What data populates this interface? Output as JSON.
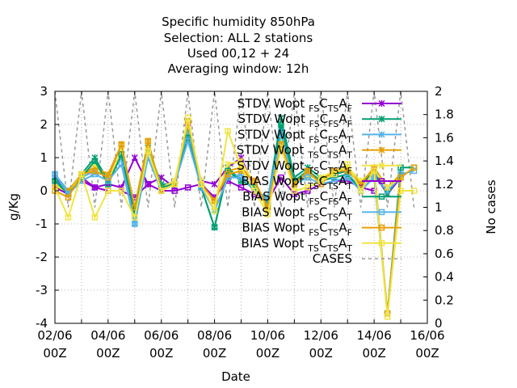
{
  "chart_data": {
    "type": "line",
    "title_lines": [
      "Specific humidity 850hPa",
      "Selection: ALL      2 stations",
      "Used  00,12  + 24",
      "Averaging window: 12h"
    ],
    "xlabel": "Date",
    "ylabel": "g/Kg",
    "y2label": "No cases",
    "ylim": [
      -4,
      3
    ],
    "y2lim": [
      0,
      2
    ],
    "xlim": [
      0,
      14
    ],
    "x_tick_labels": [
      {
        "x": 0,
        "date": "02/06",
        "time": "00Z"
      },
      {
        "x": 2,
        "date": "04/06",
        "time": "00Z"
      },
      {
        "x": 4,
        "date": "06/06",
        "time": "00Z"
      },
      {
        "x": 6,
        "date": "08/06",
        "time": "00Z"
      },
      {
        "x": 8,
        "date": "10/06",
        "time": "00Z"
      },
      {
        "x": 10,
        "date": "12/06",
        "time": "00Z"
      },
      {
        "x": 12,
        "date": "14/06",
        "time": "00Z"
      },
      {
        "x": 14,
        "date": "16/06",
        "time": "00Z"
      }
    ],
    "y_ticks": [
      -4,
      -3,
      -2,
      -1,
      0,
      1,
      2,
      3
    ],
    "y2_ticks": [
      "0",
      "0.2",
      "0.4",
      "0.6",
      "0.8",
      "1",
      "1.2",
      "1.4",
      "1.6",
      "1.8",
      "2"
    ],
    "grid": true,
    "legend_position": "top-right",
    "x": [
      0,
      0.5,
      1,
      1.5,
      2,
      2.5,
      3,
      3.5,
      4,
      4.5,
      5,
      5.5,
      6,
      6.5,
      7,
      7.5,
      8,
      8.5,
      9,
      9.5,
      10,
      10.5,
      11,
      11.5,
      12,
      12.5,
      13,
      13.5
    ],
    "series": [
      {
        "legend_main": "STDV Wopt",
        "legend_sub": [
          "FS",
          "TS",
          "F"
        ],
        "marker": "x",
        "color": "#9400d3",
        "values": [
          0.4,
          0.0,
          0.4,
          0.1,
          0.2,
          0.1,
          1.0,
          0.2,
          0.4,
          0.1,
          1.9,
          0.3,
          0.2,
          0.7,
          1.0,
          0.1,
          -0.3,
          1.5,
          0.2,
          0.6,
          0.3,
          0.5,
          0.6,
          0.2,
          0.5,
          -0.1,
          0.4,
          null
        ]
      },
      {
        "legend_main": "STDV Wopt",
        "legend_sub": [
          "FS",
          "FS",
          "F"
        ],
        "marker": "x",
        "color": "#009e73",
        "values": [
          0.3,
          0.0,
          0.5,
          1.0,
          0.3,
          1.1,
          -0.9,
          1.3,
          0.2,
          0.2,
          1.8,
          0.1,
          -1.1,
          0.7,
          0.3,
          0.1,
          -0.3,
          2.2,
          0.4,
          0.7,
          0.4,
          0.5,
          0.6,
          0.2,
          0.6,
          -0.1,
          0.5,
          null
        ]
      },
      {
        "legend_main": "STDV Wopt",
        "legend_sub": [
          "FS",
          "FS",
          "T"
        ],
        "marker": "x",
        "color": "#56b4e9",
        "values": [
          0.5,
          0.0,
          0.4,
          0.6,
          0.4,
          1.0,
          -1.0,
          1.2,
          0.1,
          0.3,
          1.7,
          0.2,
          -0.6,
          0.4,
          0.5,
          0.0,
          -0.2,
          1.8,
          0.3,
          0.5,
          0.3,
          0.4,
          0.5,
          0.1,
          0.4,
          0.0,
          0.4,
          null
        ]
      },
      {
        "legend_main": "STDV Wopt",
        "legend_sub": [
          "TS",
          "TS",
          "T"
        ],
        "marker": "x",
        "color": "#e69f00",
        "values": [
          0.1,
          0.0,
          0.5,
          0.7,
          0.5,
          1.4,
          -0.6,
          1.5,
          0.0,
          0.2,
          2.1,
          0.2,
          -0.3,
          0.6,
          0.7,
          0.3,
          -0.5,
          1.4,
          0.2,
          0.6,
          0.3,
          0.6,
          0.7,
          0.2,
          0.7,
          0.1,
          0.5,
          null
        ]
      },
      {
        "legend_main": "STDV Wopt",
        "legend_sub": [
          "TS",
          "TS",
          "F"
        ],
        "marker": "x",
        "color": "#f0e442",
        "values": [
          0.2,
          -0.1,
          0.5,
          0.8,
          0.3,
          1.2,
          -0.7,
          1.4,
          0.1,
          0.3,
          2.0,
          0.3,
          -0.4,
          0.8,
          0.9,
          0.2,
          -0.6,
          1.6,
          0.3,
          0.4,
          0.4,
          0.6,
          0.7,
          0.3,
          0.6,
          0.1,
          0.4,
          null
        ]
      },
      {
        "legend_main": "BIAS Wopt",
        "legend_sub": [
          "TS",
          "TS",
          "T"
        ],
        "marker": "sq",
        "color": "#9400d3",
        "values": [
          0.1,
          -0.1,
          0.3,
          0.1,
          0.0,
          0.0,
          -0.2,
          0.2,
          0.0,
          0.0,
          0.1,
          0.2,
          -0.2,
          0.3,
          0.1,
          -0.1,
          -0.3,
          0.4,
          -0.1,
          0.0,
          0.2,
          0.3,
          0.3,
          0.1,
          0.0,
          null,
          null,
          null
        ]
      },
      {
        "legend_main": "BIAS Wopt",
        "legend_sub": [
          "FS",
          "FS",
          "F"
        ],
        "marker": "sq",
        "color": "#009e73",
        "values": [
          0.3,
          -0.1,
          0.4,
          0.9,
          0.2,
          1.1,
          -0.7,
          1.2,
          0.1,
          0.2,
          1.6,
          0.1,
          -1.1,
          0.6,
          0.3,
          0.1,
          -0.4,
          2.0,
          0.3,
          0.6,
          0.3,
          0.4,
          0.5,
          0.0,
          0.6,
          -3.7,
          0.7,
          0.7
        ]
      },
      {
        "legend_main": "BIAS Wopt",
        "legend_sub": [
          "FS",
          "TS",
          "T"
        ],
        "marker": "sq",
        "color": "#56b4e9",
        "values": [
          0.5,
          -0.1,
          0.3,
          0.5,
          0.3,
          0.8,
          -1.0,
          1.0,
          0.0,
          0.2,
          1.5,
          0.1,
          -0.6,
          0.4,
          0.4,
          0.0,
          -0.3,
          1.7,
          0.2,
          0.4,
          0.2,
          0.3,
          0.4,
          0.0,
          0.4,
          -3.7,
          0.5,
          0.6
        ]
      },
      {
        "legend_main": "BIAS Wopt",
        "legend_sub": [
          "FS",
          "TS",
          "F"
        ],
        "marker": "sq",
        "color": "#e69f00",
        "values": [
          0.0,
          -0.2,
          0.5,
          0.6,
          0.4,
          1.4,
          -0.5,
          1.5,
          0.0,
          0.2,
          2.1,
          0.2,
          -0.3,
          0.5,
          0.6,
          0.3,
          -0.5,
          1.4,
          0.2,
          0.6,
          0.2,
          0.6,
          0.6,
          0.2,
          0.7,
          -3.7,
          0.4,
          0.7
        ]
      },
      {
        "legend_main": "BIAS Wopt",
        "legend_sub": [
          "TS",
          "TS",
          "T"
        ],
        "marker": "sq",
        "color": "#f0e442",
        "values": [
          0.1,
          -0.8,
          0.5,
          -0.8,
          0.0,
          0.0,
          -0.8,
          1.2,
          0.0,
          0.2,
          2.2,
          0.2,
          -0.6,
          1.8,
          0.7,
          0.0,
          -0.7,
          1.3,
          0.0,
          0.1,
          0.3,
          0.5,
          0.8,
          0.0,
          0.6,
          -3.8,
          0.0,
          0.0
        ]
      }
    ],
    "cases": {
      "name": "CASES",
      "color": "#999999",
      "values": [
        2,
        1,
        2,
        1,
        2,
        1,
        2,
        1,
        2,
        1,
        2,
        1,
        2,
        1,
        2,
        1,
        2,
        1,
        2,
        1,
        2,
        1,
        2,
        1,
        2,
        1,
        2,
        1
      ]
    }
  }
}
